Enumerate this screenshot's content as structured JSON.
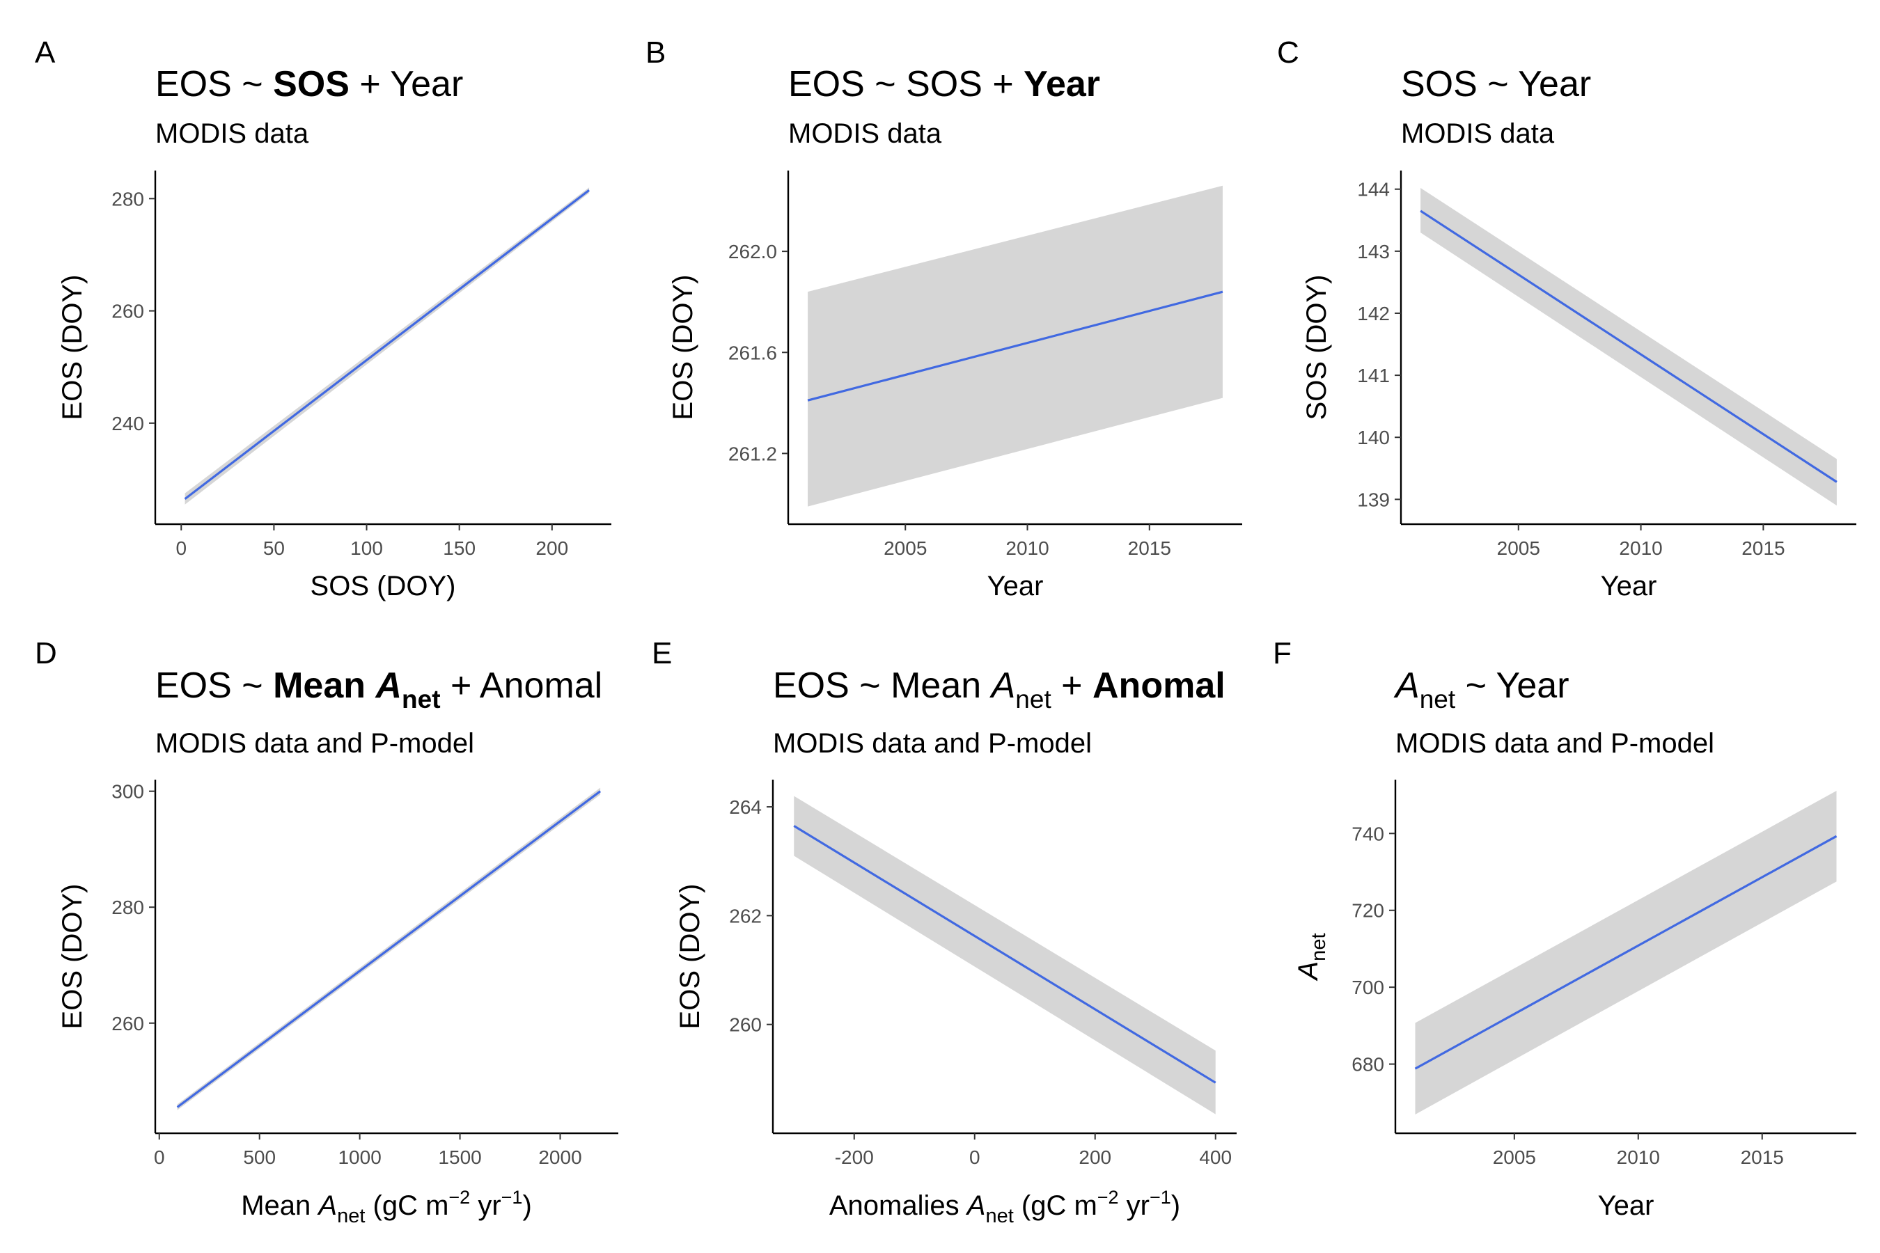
{
  "chart_data": [
    {
      "panel": "A",
      "type": "line",
      "title_parts": [
        {
          "text": "EOS ~ "
        },
        {
          "text": "SOS",
          "bold": true
        },
        {
          "text": " + Year"
        }
      ],
      "subtitle": "MODIS data",
      "xlabel_parts": [
        {
          "text": "SOS (DOY)"
        }
      ],
      "ylabel_parts": [
        {
          "text": "EOS (DOY)"
        }
      ],
      "xlim": [
        -14,
        232
      ],
      "ylim": [
        222,
        285
      ],
      "xticks": [
        0,
        50,
        100,
        150,
        200
      ],
      "yticks": [
        240,
        260,
        280
      ],
      "line_color": "#4169e1",
      "ribbon_color": "#d6d6d6",
      "grid": false,
      "x": [
        2,
        220
      ],
      "y": [
        226.5,
        281.5
      ],
      "ymin": [
        225.5,
        281.0
      ],
      "ymax": [
        227.5,
        282.0
      ]
    },
    {
      "panel": "B",
      "type": "line",
      "title_parts": [
        {
          "text": "EOS ~ SOS + "
        },
        {
          "text": "Year",
          "bold": true
        }
      ],
      "subtitle": "MODIS data",
      "xlabel_parts": [
        {
          "text": "Year"
        }
      ],
      "ylabel_parts": [
        {
          "text": "EOS (DOY)"
        }
      ],
      "xlim": [
        2000.2,
        2018.8
      ],
      "ylim": [
        260.92,
        262.32
      ],
      "xticks": [
        2005,
        2010,
        2015
      ],
      "yticks": [
        261.2,
        261.6,
        262.0
      ],
      "line_color": "#4169e1",
      "ribbon_color": "#d6d6d6",
      "grid": false,
      "x": [
        2001,
        2018
      ],
      "y": [
        261.41,
        261.84
      ],
      "ymin": [
        260.99,
        261.42
      ],
      "ymax": [
        261.84,
        262.26
      ]
    },
    {
      "panel": "C",
      "type": "line",
      "title_parts": [
        {
          "text": "SOS ~ Year"
        }
      ],
      "subtitle": "MODIS data",
      "xlabel_parts": [
        {
          "text": "Year"
        }
      ],
      "ylabel_parts": [
        {
          "text": "SOS (DOY)"
        }
      ],
      "xlim": [
        2000.2,
        2018.8
      ],
      "ylim": [
        138.6,
        144.3
      ],
      "xticks": [
        2005,
        2010,
        2015
      ],
      "yticks": [
        139,
        140,
        141,
        142,
        143,
        144
      ],
      "line_color": "#4169e1",
      "ribbon_color": "#d6d6d6",
      "grid": false,
      "x": [
        2001,
        2018
      ],
      "y": [
        143.65,
        139.28
      ],
      "ymin": [
        143.3,
        138.9
      ],
      "ymax": [
        144.02,
        139.65
      ]
    },
    {
      "panel": "D",
      "type": "line",
      "title_parts": [
        {
          "text": "EOS ~ "
        },
        {
          "text": "Mean ",
          "bold": true
        },
        {
          "text": "A",
          "bold": true,
          "italic": true
        },
        {
          "text": "net",
          "bold": true,
          "sub": true
        },
        {
          "text": " + Anomal"
        }
      ],
      "subtitle": "MODIS data and P-model",
      "xlabel_parts": [
        {
          "text": "Mean "
        },
        {
          "text": "A",
          "italic": true
        },
        {
          "text": "net",
          "sub": true
        },
        {
          "text": " (gC m"
        },
        {
          "text": "−2",
          "sup": true
        },
        {
          "text": " yr"
        },
        {
          "text": "−1",
          "sup": true
        },
        {
          "text": ")"
        }
      ],
      "ylabel_parts": [
        {
          "text": "EOS (DOY)"
        }
      ],
      "xlim": [
        -20,
        2290
      ],
      "ylim": [
        241,
        302
      ],
      "xticks": [
        0,
        500,
        1000,
        1500,
        2000
      ],
      "yticks": [
        260,
        280,
        300
      ],
      "line_color": "#4169e1",
      "ribbon_color": "#d6d6d6",
      "grid": false,
      "x": [
        90,
        2200
      ],
      "y": [
        245.5,
        300.0
      ],
      "ymin": [
        245.0,
        299.4
      ],
      "ymax": [
        246.0,
        300.6
      ]
    },
    {
      "panel": "E",
      "type": "line",
      "title_parts": [
        {
          "text": "EOS ~ Mean "
        },
        {
          "text": "A",
          "italic": true
        },
        {
          "text": "net",
          "sub": true
        },
        {
          "text": " + "
        },
        {
          "text": "Anomal",
          "bold": true
        }
      ],
      "subtitle": "MODIS data and P-model",
      "xlabel_parts": [
        {
          "text": "Anomalies "
        },
        {
          "text": "A",
          "italic": true
        },
        {
          "text": "net",
          "sub": true
        },
        {
          "text": " (gC m"
        },
        {
          "text": "−2",
          "sup": true
        },
        {
          "text": " yr"
        },
        {
          "text": "−1",
          "sup": true
        },
        {
          "text": ")"
        }
      ],
      "ylabel_parts": [
        {
          "text": "EOS (DOY)"
        }
      ],
      "xlim": [
        -335,
        435
      ],
      "ylim": [
        258.0,
        264.5
      ],
      "xticks": [
        -200,
        0,
        200,
        400
      ],
      "yticks": [
        260,
        262,
        264
      ],
      "line_color": "#4169e1",
      "ribbon_color": "#d6d6d6",
      "grid": false,
      "x": [
        -300,
        400
      ],
      "y": [
        263.65,
        258.93
      ],
      "ymin": [
        263.1,
        258.35
      ],
      "ymax": [
        264.2,
        259.52
      ]
    },
    {
      "panel": "F",
      "type": "line",
      "title_parts": [
        {
          "text": "A",
          "italic": true
        },
        {
          "text": "net",
          "sub": true
        },
        {
          "text": " ~ Year"
        }
      ],
      "subtitle": "MODIS data and P-model",
      "xlabel_parts": [
        {
          "text": "Year"
        }
      ],
      "ylabel_parts": [
        {
          "text": "A",
          "italic": true
        },
        {
          "text": "net",
          "sub": true
        }
      ],
      "xlim": [
        2000.2,
        2018.8
      ],
      "ylim": [
        662,
        754
      ],
      "xticks": [
        2005,
        2010,
        2015
      ],
      "yticks": [
        680,
        700,
        720,
        740
      ],
      "line_color": "#4169e1",
      "ribbon_color": "#d6d6d6",
      "grid": false,
      "x": [
        2001,
        2018
      ],
      "y": [
        678.8,
        739.3
      ],
      "ymin": [
        666.9,
        727.5
      ],
      "ymax": [
        690.7,
        751.1
      ]
    }
  ]
}
